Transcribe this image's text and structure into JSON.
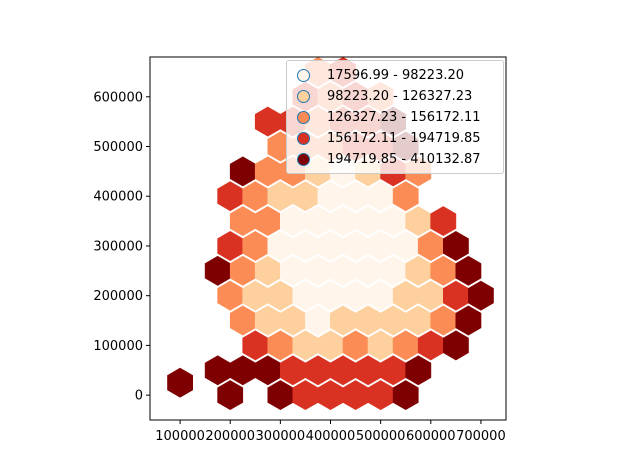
{
  "chart_data": {
    "type": "heatmap",
    "subtype": "hexbin-choropleth",
    "x_ticks": [
      "100000",
      "200000",
      "300000",
      "400000",
      "500000",
      "600000",
      "700000"
    ],
    "y_ticks": [
      "0",
      "100000",
      "200000",
      "300000",
      "400000",
      "500000",
      "600000"
    ],
    "xlim": [
      40000,
      750000
    ],
    "ylim": [
      -50000,
      680000
    ],
    "legend_position": "upper-right",
    "legend": [
      {
        "label": "17596.99 - 98223.20",
        "color": "#fff5eb"
      },
      {
        "label": "98223.20 - 126327.23",
        "color": "#fdd09e"
      },
      {
        "label": "126327.23 - 156172.11",
        "color": "#fb8c55"
      },
      {
        "label": "156172.11 - 194719.85",
        "color": "#d93222"
      },
      {
        "label": "194719.85 - 410132.87",
        "color": "#7f0000"
      }
    ],
    "marker_edge_color": "#1f77b4",
    "cells": [
      [
        100000,
        25000,
        4
      ],
      [
        175000,
        50000,
        4
      ],
      [
        225000,
        50000,
        4
      ],
      [
        275000,
        50000,
        4
      ],
      [
        325000,
        50000,
        3
      ],
      [
        375000,
        50000,
        3
      ],
      [
        425000,
        50000,
        3
      ],
      [
        475000,
        50000,
        3
      ],
      [
        525000,
        50000,
        3
      ],
      [
        575000,
        50000,
        4
      ],
      [
        200000,
        0,
        4
      ],
      [
        300000,
        0,
        4
      ],
      [
        350000,
        0,
        3
      ],
      [
        400000,
        0,
        3
      ],
      [
        450000,
        0,
        3
      ],
      [
        500000,
        0,
        3
      ],
      [
        550000,
        0,
        4
      ],
      [
        250000,
        100000,
        3
      ],
      [
        300000,
        100000,
        2
      ],
      [
        350000,
        100000,
        1
      ],
      [
        400000,
        100000,
        1
      ],
      [
        450000,
        100000,
        2
      ],
      [
        500000,
        100000,
        1
      ],
      [
        550000,
        100000,
        2
      ],
      [
        600000,
        100000,
        3
      ],
      [
        650000,
        100000,
        4
      ],
      [
        225000,
        150000,
        2
      ],
      [
        275000,
        150000,
        1
      ],
      [
        325000,
        150000,
        1
      ],
      [
        375000,
        150000,
        0
      ],
      [
        425000,
        150000,
        1
      ],
      [
        475000,
        150000,
        1
      ],
      [
        525000,
        150000,
        1
      ],
      [
        575000,
        150000,
        1
      ],
      [
        625000,
        150000,
        2
      ],
      [
        675000,
        150000,
        4
      ],
      [
        200000,
        200000,
        2
      ],
      [
        250000,
        200000,
        1
      ],
      [
        300000,
        200000,
        1
      ],
      [
        350000,
        200000,
        0
      ],
      [
        400000,
        200000,
        0
      ],
      [
        450000,
        200000,
        0
      ],
      [
        500000,
        200000,
        0
      ],
      [
        550000,
        200000,
        1
      ],
      [
        600000,
        200000,
        1
      ],
      [
        650000,
        200000,
        3
      ],
      [
        700000,
        200000,
        4
      ],
      [
        175000,
        250000,
        4
      ],
      [
        225000,
        250000,
        2
      ],
      [
        275000,
        250000,
        1
      ],
      [
        325000,
        250000,
        0
      ],
      [
        375000,
        250000,
        0
      ],
      [
        425000,
        250000,
        0
      ],
      [
        475000,
        250000,
        0
      ],
      [
        525000,
        250000,
        0
      ],
      [
        575000,
        250000,
        1
      ],
      [
        625000,
        250000,
        2
      ],
      [
        675000,
        250000,
        4
      ],
      [
        200000,
        300000,
        3
      ],
      [
        250000,
        300000,
        2
      ],
      [
        300000,
        300000,
        0
      ],
      [
        350000,
        300000,
        0
      ],
      [
        400000,
        300000,
        0
      ],
      [
        450000,
        300000,
        0
      ],
      [
        500000,
        300000,
        0
      ],
      [
        550000,
        300000,
        0
      ],
      [
        600000,
        300000,
        2
      ],
      [
        650000,
        300000,
        4
      ],
      [
        225000,
        350000,
        2
      ],
      [
        275000,
        350000,
        2
      ],
      [
        325000,
        350000,
        0
      ],
      [
        375000,
        350000,
        0
      ],
      [
        425000,
        350000,
        0
      ],
      [
        475000,
        350000,
        0
      ],
      [
        525000,
        350000,
        0
      ],
      [
        575000,
        350000,
        1
      ],
      [
        625000,
        350000,
        3
      ],
      [
        200000,
        400000,
        3
      ],
      [
        250000,
        400000,
        2
      ],
      [
        300000,
        400000,
        1
      ],
      [
        350000,
        400000,
        1
      ],
      [
        400000,
        400000,
        0
      ],
      [
        450000,
        400000,
        0
      ],
      [
        500000,
        400000,
        0
      ],
      [
        550000,
        400000,
        2
      ],
      [
        225000,
        450000,
        4
      ],
      [
        275000,
        450000,
        2
      ],
      [
        325000,
        450000,
        2
      ],
      [
        375000,
        450000,
        1
      ],
      [
        425000,
        450000,
        0
      ],
      [
        475000,
        450000,
        1
      ],
      [
        525000,
        450000,
        3
      ],
      [
        575000,
        450000,
        2
      ],
      [
        300000,
        500000,
        2
      ],
      [
        350000,
        500000,
        2
      ],
      [
        400000,
        500000,
        2
      ],
      [
        450000,
        500000,
        3
      ],
      [
        500000,
        500000,
        3
      ],
      [
        550000,
        500000,
        4
      ],
      [
        275000,
        550000,
        3
      ],
      [
        325000,
        550000,
        3
      ],
      [
        375000,
        550000,
        2
      ],
      [
        425000,
        550000,
        3
      ],
      [
        475000,
        550000,
        3
      ],
      [
        525000,
        550000,
        4
      ],
      [
        350000,
        600000,
        3
      ],
      [
        400000,
        600000,
        2
      ],
      [
        450000,
        600000,
        3
      ],
      [
        500000,
        600000,
        2
      ],
      [
        375000,
        650000,
        2
      ],
      [
        425000,
        650000,
        3
      ]
    ]
  }
}
